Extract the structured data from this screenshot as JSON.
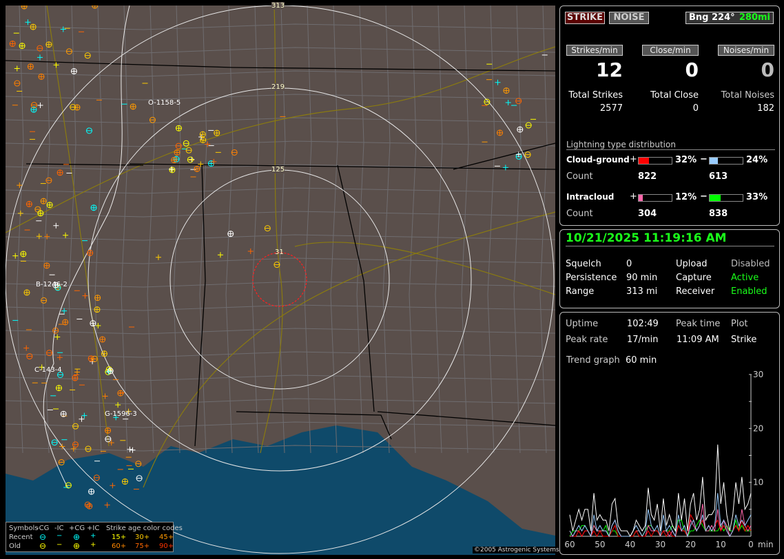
{
  "map": {
    "range_rings": [
      {
        "label": "31"
      },
      {
        "label": "125"
      },
      {
        "label": "219"
      },
      {
        "label": "313"
      }
    ],
    "clusters": [
      "O-1158-5",
      "B-1246-2",
      "C-143-4",
      "G-1596-3"
    ],
    "copyright": "©2005 Astrogenic Systems",
    "colors": {
      "land": "#5a4f4b",
      "water": "#0f4a6a",
      "ring": "#e8e8e8",
      "close_ring": "#ff2020",
      "highway": "#8a7a10",
      "county": "#6f6d70",
      "state": "#000000"
    }
  },
  "legend": {
    "header": [
      "Symbols",
      "-CG",
      "-IC",
      "+CG",
      "+IC"
    ],
    "age_title": "Strike age color codes",
    "recent_label": "Recent",
    "old_label": "Old",
    "ages_recent": [
      {
        "t": "15+",
        "c": "#ffff00"
      },
      {
        "t": "30+",
        "c": "#ffcc00"
      },
      {
        "t": "45+",
        "c": "#ff9900"
      }
    ],
    "ages_old": [
      {
        "t": "60+",
        "c": "#ff8000"
      },
      {
        "t": "75+",
        "c": "#ff6600"
      },
      {
        "t": "90+",
        "c": "#ff3300"
      }
    ],
    "recent_color": "#00ffff",
    "old_color": "#ffff00"
  },
  "top": {
    "strike_btn": "STRIKE",
    "noise_btn": "NOISE",
    "bearing": "Bng 224°",
    "distance": "280mi",
    "rates": [
      {
        "label": "Strikes/min",
        "value": "12",
        "total_label": "Total Strikes",
        "total": "2577"
      },
      {
        "label": "Close/min",
        "value": "0",
        "total_label": "Total Close",
        "total": "0"
      },
      {
        "label": "Noises/min",
        "value": "0",
        "total_label": "Total Noises",
        "total": "182"
      }
    ],
    "dist_title": "Lightning type distribution",
    "cg_label": "Cloud-ground",
    "ic_label": "Intracloud",
    "count_label": "Count",
    "plus": "+",
    "minus": "−",
    "cg_pos": {
      "pct": "32%",
      "value": 32,
      "count": "822",
      "color": "#ff0000"
    },
    "cg_neg": {
      "pct": "24%",
      "value": 24,
      "count": "613",
      "color": "#99ccff"
    },
    "ic_pos": {
      "pct": "12%",
      "value": 12,
      "count": "304",
      "color": "#ff66aa"
    },
    "ic_neg": {
      "pct": "33%",
      "value": 33,
      "count": "838",
      "color": "#00ff00"
    }
  },
  "status": {
    "datetime": "10/21/2025 11:19:16 AM",
    "rows": [
      [
        "Squelch",
        "0",
        "Upload",
        "Disabled"
      ],
      [
        "Persistence",
        "90 min",
        "Capture",
        "Active"
      ],
      [
        "Range",
        "313 mi",
        "Receiver",
        "Enabled"
      ]
    ]
  },
  "stats": {
    "uptime_label": "Uptime",
    "uptime": "102:49",
    "peak_time_label": "Peak time",
    "plot_label": "Plot",
    "peak_rate_label": "Peak rate",
    "peak_rate": "17/min",
    "peak_time": "11:09 AM",
    "plot": "Strike",
    "trend_label": "Trend graph",
    "trend": "60 min"
  },
  "chart_data": {
    "type": "line",
    "xlabel": "min",
    "xlim": [
      60,
      0
    ],
    "ylim": [
      0,
      30
    ],
    "x_ticks": [
      "60",
      "50",
      "40",
      "30",
      "20",
      "10",
      "0"
    ],
    "y_ticks": [
      "10",
      "20",
      "30"
    ],
    "x": [
      60,
      59,
      58,
      57,
      56,
      55,
      54,
      53,
      52,
      51,
      50,
      49,
      48,
      47,
      46,
      45,
      44,
      43,
      42,
      41,
      40,
      39,
      38,
      37,
      36,
      35,
      34,
      33,
      32,
      31,
      30,
      29,
      28,
      27,
      26,
      25,
      24,
      23,
      22,
      21,
      20,
      19,
      18,
      17,
      16,
      15,
      14,
      13,
      12,
      11,
      10,
      9,
      8,
      7,
      6,
      5,
      4,
      3,
      2,
      1,
      0
    ],
    "series": [
      {
        "color": "#ffffff",
        "values": [
          4,
          1,
          3,
          5,
          3,
          5,
          5,
          1,
          8,
          3,
          4,
          3,
          3,
          1,
          6,
          7,
          2,
          1,
          1,
          1,
          0,
          1,
          3,
          2,
          1,
          2,
          9,
          4,
          3,
          6,
          1,
          7,
          2,
          4,
          2,
          1,
          8,
          3,
          7,
          1,
          6,
          8,
          3,
          5,
          11,
          3,
          4,
          4,
          5,
          17,
          6,
          10,
          4,
          1,
          4,
          10,
          6,
          11,
          5,
          6,
          8
        ]
      },
      {
        "color": "#99ccff",
        "values": [
          1,
          0,
          1,
          2,
          1,
          2,
          1,
          0,
          4,
          1,
          2,
          1,
          1,
          0,
          2,
          3,
          1,
          0,
          0,
          0,
          0,
          1,
          2,
          1,
          0,
          1,
          5,
          2,
          1,
          2,
          0,
          4,
          1,
          2,
          1,
          0,
          4,
          1,
          2,
          0,
          2,
          3,
          1,
          2,
          4,
          1,
          2,
          1,
          2,
          8,
          2,
          3,
          1,
          0,
          1,
          4,
          2,
          3,
          2,
          3,
          4
        ]
      },
      {
        "color": "#ff0000",
        "values": [
          1,
          0,
          0,
          1,
          0,
          1,
          1,
          0,
          1,
          0,
          1,
          0,
          0,
          0,
          1,
          2,
          0,
          0,
          0,
          0,
          0,
          0,
          1,
          0,
          0,
          0,
          1,
          0,
          1,
          1,
          0,
          1,
          0,
          1,
          0,
          0,
          2,
          1,
          1,
          0,
          4,
          3,
          1,
          2,
          3,
          1,
          2,
          1,
          2,
          3,
          1,
          2,
          1,
          0,
          1,
          2,
          1,
          3,
          1,
          2,
          1
        ]
      },
      {
        "color": "#ff66aa",
        "values": [
          0,
          0,
          1,
          1,
          0,
          1,
          1,
          0,
          2,
          1,
          1,
          1,
          1,
          0,
          2,
          3,
          1,
          0,
          0,
          0,
          0,
          0,
          1,
          1,
          0,
          0,
          2,
          1,
          1,
          1,
          0,
          1,
          1,
          0,
          1,
          0,
          2,
          1,
          1,
          0,
          3,
          2,
          1,
          2,
          6,
          1,
          1,
          2,
          1,
          5,
          1,
          3,
          2,
          0,
          1,
          2,
          1,
          5,
          2,
          1,
          2
        ]
      },
      {
        "color": "#00ff00",
        "values": [
          0,
          1,
          1,
          1,
          2,
          2,
          1,
          0,
          2,
          1,
          1,
          1,
          2,
          0,
          1,
          1,
          0,
          0,
          0,
          0,
          0,
          0,
          1,
          1,
          0,
          1,
          2,
          2,
          1,
          1,
          0,
          1,
          1,
          1,
          2,
          1,
          3,
          3,
          1,
          0,
          1,
          1,
          2,
          3,
          2,
          1,
          1,
          1,
          1,
          1,
          2,
          1,
          2,
          1,
          1,
          3,
          1,
          2,
          1,
          1,
          1
        ]
      }
    ]
  }
}
